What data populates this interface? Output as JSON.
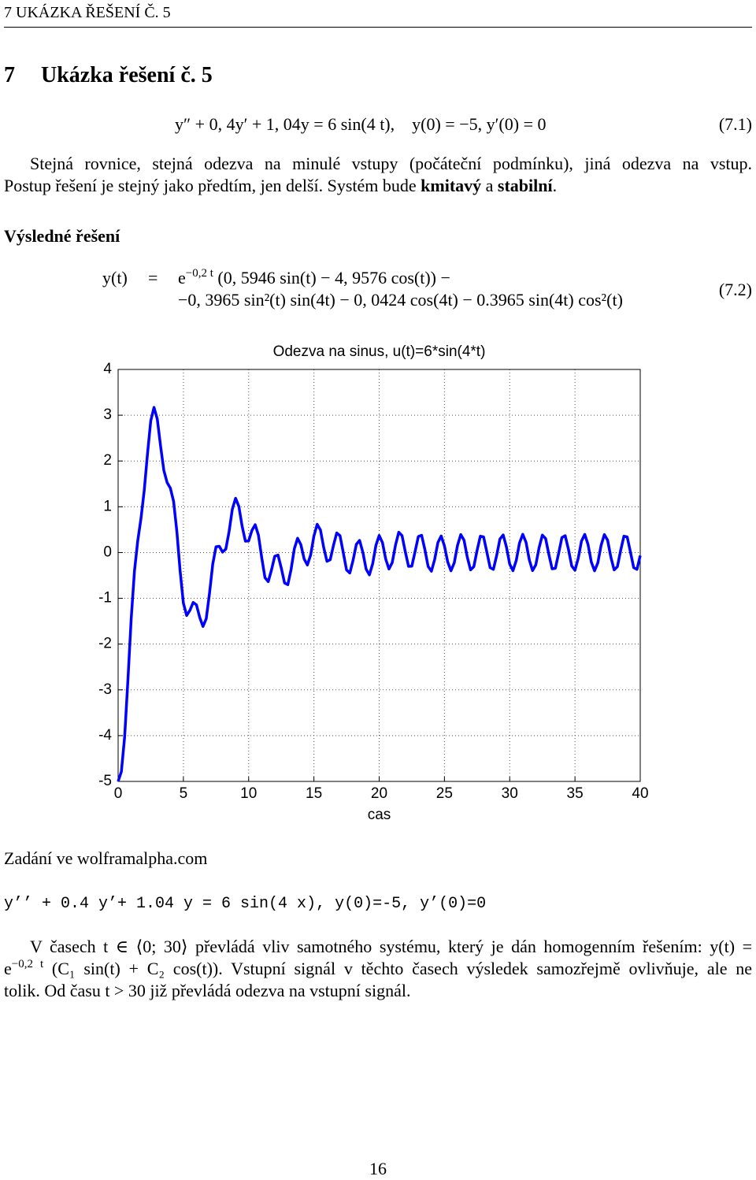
{
  "header": "7 UKÁZKA ŘEŠENÍ Č. 5",
  "section": {
    "number": "7",
    "title": "Ukázka řešení č. 5"
  },
  "eq1": {
    "text": "y″ + 0, 4y′ + 1, 04y = 6 sin(4 t),    y(0) = −5, y′(0) = 0",
    "label": "(7.1)"
  },
  "para1": {
    "line1": "Stejná rovnice, stejná odezva na minulé vstupy (počáteční podmínku), jiná odezva na vstup.",
    "line2": [
      "Postup řešení je stejný jako předtím, jen delší. Systém bude ",
      "kmitavý",
      " a ",
      "stabilní",
      "."
    ]
  },
  "subheading": "Výsledné řešení",
  "eq2": {
    "lhs": "y(t)",
    "eq": "=",
    "base": "e",
    "exp": "−0,2 t",
    "line1": "(0, 5946 sin(t) − 4, 9576 cos(t)) −",
    "line2": "−0, 3965 sin²(t) sin(4t) − 0, 0424 cos(4t) − 0.3965 sin(4t) cos²(t)",
    "label": "(7.2)"
  },
  "chart_data": {
    "type": "line",
    "title": "Odezva na sinus, u(t)=6*sin(4*t)",
    "xlabel": "cas",
    "x": [
      0,
      0.25,
      0.5,
      0.75,
      1,
      1.25,
      1.5,
      1.75,
      2,
      2.25,
      2.5,
      2.75,
      3,
      3.25,
      3.5,
      3.75,
      4,
      4.25,
      4.5,
      4.75,
      5,
      5.25,
      5.5,
      5.75,
      6,
      6.25,
      6.5,
      6.75,
      7,
      7.25,
      7.5,
      7.75,
      8,
      8.25,
      8.5,
      8.75,
      9,
      9.25,
      9.5,
      9.75,
      10,
      10.25,
      10.5,
      10.75,
      11,
      11.25,
      11.5,
      11.75,
      12,
      12.25,
      12.5,
      12.75,
      13,
      13.25,
      13.5,
      13.75,
      14,
      14.25,
      14.5,
      14.75,
      15,
      15.25,
      15.5,
      15.75,
      16,
      16.25,
      16.5,
      16.75,
      17,
      17.25,
      17.5,
      17.75,
      18,
      18.25,
      18.5,
      18.75,
      19,
      19.25,
      19.5,
      19.75,
      20,
      20.25,
      20.5,
      20.75,
      21,
      21.25,
      21.5,
      21.75,
      22,
      22.25,
      22.5,
      22.75,
      23,
      23.25,
      23.5,
      23.75,
      24,
      24.25,
      24.5,
      24.75,
      25,
      25.25,
      25.5,
      25.75,
      26,
      26.25,
      26.5,
      26.75,
      27,
      27.25,
      27.5,
      27.75,
      28,
      28.25,
      28.5,
      28.75,
      29,
      29.25,
      29.5,
      29.75,
      30,
      30.25,
      30.5,
      30.75,
      31,
      31.25,
      31.5,
      31.75,
      32,
      32.25,
      32.5,
      32.75,
      33,
      33.25,
      33.5,
      33.75,
      34,
      34.25,
      34.5,
      34.75,
      35,
      35.25,
      35.5,
      35.75,
      36,
      36.25,
      36.5,
      36.75,
      37,
      37.25,
      37.5,
      37.75,
      38,
      38.25,
      38.5,
      38.75,
      39,
      39.25,
      39.5,
      39.75,
      40
    ],
    "series": [
      {
        "color": "#0000ff",
        "values": [
          -5,
          -4.785,
          -4.022,
          -2.788,
          -1.454,
          -0.411,
          0.25,
          0.743,
          1.357,
          2.154,
          2.879,
          3.171,
          2.916,
          2.332,
          1.799,
          1.531,
          1.409,
          1.118,
          0.458,
          -0.404,
          -1.106,
          -1.375,
          -1.263,
          -1.09,
          -1.143,
          -1.416,
          -1.615,
          -1.445,
          -0.892,
          -0.251,
          0.126,
          0.137,
          0.01,
          0.076,
          0.457,
          0.947,
          1.186,
          1.007,
          0.575,
          0.248,
          0.253,
          0.483,
          0.608,
          0.379,
          -0.11,
          -0.548,
          -0.636,
          -0.379,
          -0.08,
          -0.055,
          -0.339,
          -0.664,
          -0.702,
          -0.37,
          0.084,
          0.312,
          0.172,
          -0.139,
          -0.272,
          -0.052,
          0.362,
          0.617,
          0.494,
          0.11,
          -0.192,
          -0.156,
          0.159,
          0.428,
          0.367,
          -0.004,
          -0.38,
          -0.447,
          -0.168,
          0.18,
          0.265,
          0.004,
          -0.362,
          -0.488,
          -0.247,
          0.158,
          0.372,
          0.219,
          -0.142,
          -0.36,
          -0.219,
          0.162,
          0.444,
          0.37,
          0.018,
          -0.302,
          -0.298,
          0.02,
          0.35,
          0.377,
          0.067,
          -0.305,
          -0.408,
          -0.153,
          0.219,
          0.362,
          0.144,
          -0.205,
          -0.399,
          -0.226,
          0.155,
          0.393,
          0.27,
          -0.101,
          -0.379,
          -0.309,
          0.046,
          0.358,
          0.341,
          0.01,
          -0.33,
          -0.367,
          -0.067,
          0.295,
          0.385,
          0.121,
          -0.254,
          -0.396,
          -0.174,
          0.208,
          0.399,
          0.223,
          -0.158,
          -0.394,
          -0.267,
          0.104,
          0.381,
          0.306,
          -0.042,
          -0.356,
          -0.343,
          -0.014,
          0.328,
          0.368,
          0.07,
          -0.292,
          -0.386,
          -0.125,
          0.251,
          0.396,
          0.177,
          -0.205,
          -0.399,
          -0.226,
          0.155,
          0.393,
          0.27,
          -0.101,
          -0.379,
          -0.309,
          0.046,
          0.358,
          0.341,
          0.01,
          -0.33,
          -0.367,
          -0.067
        ]
      }
    ],
    "xlim": [
      0,
      40
    ],
    "xticks": [
      0,
      5,
      10,
      15,
      20,
      25,
      30,
      35,
      40
    ],
    "ylim": [
      -5,
      4
    ],
    "yticks": [
      -5,
      -4,
      -3,
      -2,
      -1,
      0,
      1,
      2,
      3,
      4
    ],
    "grid": true
  },
  "wolfram": {
    "intro": "Zadání ve wolframalpha.com",
    "code": "y’’ + 0.4 y’+ 1.04 y = 6 sin(4 x), y(0)=-5, y’(0)=0"
  },
  "para2": {
    "line1": "V časech t ∈ ⟨0; 30⟩ převládá vliv samotného systému, který je dán homogenním řešením: y(t) =",
    "line2_base": "e",
    "line2_exp": "−0,2 t",
    "line2": " (C₁ sin(t) + C₂ cos(t)). Vstupní signál v těchto časech výsledek samozřejmě ovlivňuje, ale ne",
    "line3": "tolik. Od času t > 30 již převládá odezva na vstupní signál."
  },
  "page_number": "16"
}
